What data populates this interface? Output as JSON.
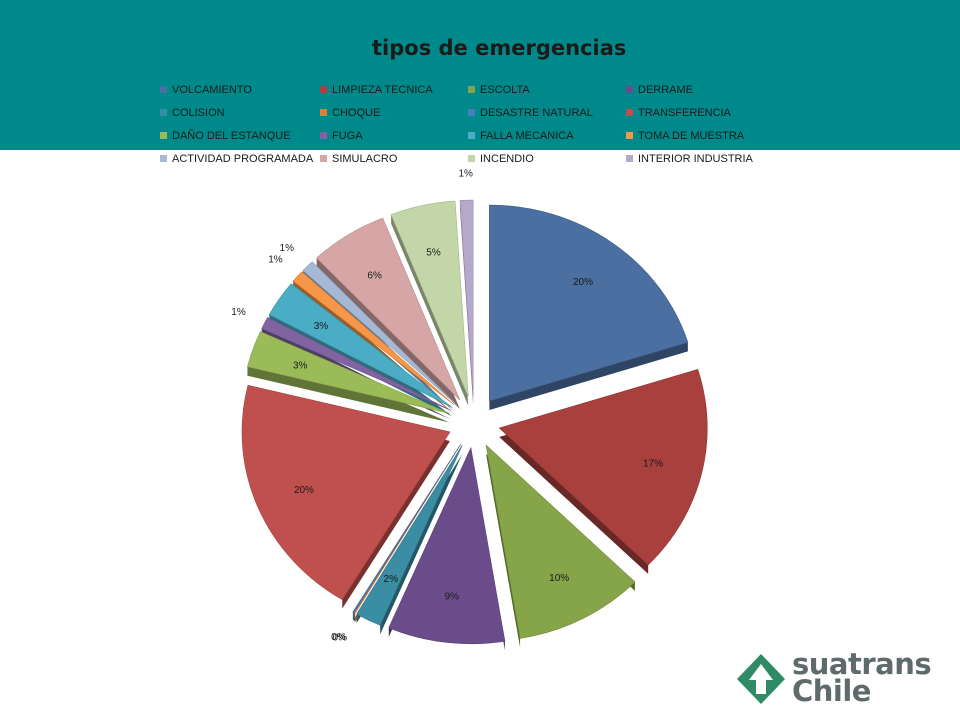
{
  "slide": {
    "banner_color": "#00898a",
    "logo": {
      "line1": "suatrans",
      "line2": "Chile",
      "mark_color": "#2f8a66",
      "icon": "tree-arrow-icon"
    }
  },
  "chart_data": {
    "type": "pie",
    "title": "tipos de emergencias",
    "legend_position": "top",
    "exploded": true,
    "style": "3d",
    "categories": [
      "VOLCAMIENTO",
      "LIMPIEZA TECNICA",
      "ESCOLTA",
      "DERRAME",
      "COLISION",
      "CHOQUE",
      "DESASTRE NATURAL",
      "TRANSFERENCIA",
      "DAÑO DEL  ESTANQUE",
      "FUGA",
      "FALLA MECANICA",
      "TOMA DE MUESTRA",
      "ACTIVIDAD PROGRAMADA",
      "SIMULACRO",
      "INCENDIO",
      "INTERIOR INDUSTRIA"
    ],
    "values": [
      20,
      17,
      10,
      9,
      2,
      0,
      0,
      20,
      3,
      1,
      3,
      1,
      1,
      6,
      5,
      1
    ],
    "labels": [
      "20%",
      "17%",
      "10%",
      "9%",
      "2%",
      "0%",
      "0%",
      "20%",
      "3%",
      "1%",
      "3%",
      "1%",
      "1%",
      "6%",
      "5%",
      "1%"
    ],
    "colors": [
      "#4a6fa0",
      "#a8403d",
      "#86a448",
      "#6b4c8a",
      "#3a8da3",
      "#de7e34",
      "#4a7cbf",
      "#c0504d",
      "#9bbb59",
      "#8064a2",
      "#4bacc6",
      "#f79646",
      "#a5b9d6",
      "#d6a6a6",
      "#c3d6a7",
      "#b6a8ca"
    ]
  }
}
